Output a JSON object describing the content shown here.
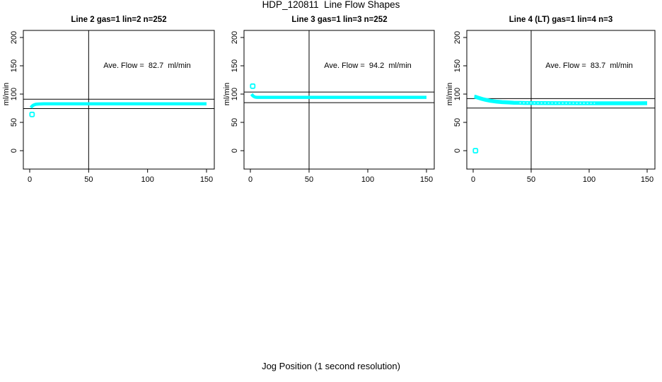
{
  "page": {
    "title": "HDP_120811  Line Flow Shapes",
    "xlabel": "Jog Position (1 second resolution)",
    "background_color": "#ffffff",
    "axis_color": "#000000",
    "marker_color": "#00ffff"
  },
  "chart_data": [
    {
      "type": "scatter",
      "title": "Line 2 gas=1 lin=2 n=252",
      "line_label": "Line 2",
      "gas": 1,
      "lin": 2,
      "n": 252,
      "annotation": "Ave. Flow =  82.7  ml/min",
      "ave_flow_ml_min": 82.7,
      "ylabel": "ml/min",
      "x_ticks": [
        0,
        50,
        100,
        150
      ],
      "y_ticks": [
        0,
        50,
        100,
        150,
        200
      ],
      "xlim": [
        0,
        150
      ],
      "ylim": [
        0,
        200
      ],
      "grid": false,
      "ref_line_v": 50,
      "ref_lines_h": [
        91.0,
        74.4
      ],
      "marker_color": "#00ffff",
      "series": [
        {
          "name": "flow",
          "points": [
            [
              1,
              76.0
            ],
            [
              2,
              78.6
            ],
            [
              3,
              80.3
            ],
            [
              4,
              81.3
            ],
            [
              5,
              81.9
            ],
            [
              6,
              82.2
            ],
            [
              8,
              82.5
            ],
            [
              10,
              82.6
            ],
            [
              12,
              82.7
            ],
            [
              15,
              82.7
            ],
            [
              20,
              82.8
            ],
            [
              30,
              82.8
            ],
            [
              40,
              82.8
            ],
            [
              50,
              82.8
            ],
            [
              60,
              82.8
            ],
            [
              75,
              82.8
            ],
            [
              90,
              82.8
            ],
            [
              100,
              82.8
            ],
            [
              110,
              82.8
            ],
            [
              125,
              82.8
            ],
            [
              140,
              82.8
            ],
            [
              150,
              82.8
            ]
          ]
        }
      ],
      "outliers": [
        [
          2,
          64
        ]
      ]
    },
    {
      "type": "scatter",
      "title": "Line 3 gas=1 lin=3 n=252",
      "line_label": "Line 3",
      "gas": 1,
      "lin": 3,
      "n": 252,
      "annotation": "Ave. Flow =  94.2  ml/min",
      "ave_flow_ml_min": 94.2,
      "ylabel": "ml/min",
      "x_ticks": [
        0,
        50,
        100,
        150
      ],
      "y_ticks": [
        0,
        50,
        100,
        150,
        200
      ],
      "xlim": [
        0,
        150
      ],
      "ylim": [
        0,
        200
      ],
      "grid": false,
      "ref_line_v": 50,
      "ref_lines_h": [
        103.6,
        84.8
      ],
      "marker_color": "#00ffff",
      "series": [
        {
          "name": "flow",
          "points": [
            [
              1,
              100.0
            ],
            [
              2,
              97.3
            ],
            [
              3,
              95.6
            ],
            [
              4,
              94.8
            ],
            [
              5,
              94.4
            ],
            [
              6,
              94.3
            ],
            [
              8,
              94.2
            ],
            [
              10,
              94.2
            ],
            [
              12,
              94.2
            ],
            [
              15,
              94.2
            ],
            [
              20,
              94.2
            ],
            [
              30,
              94.2
            ],
            [
              40,
              94.2
            ],
            [
              50,
              94.2
            ],
            [
              60,
              94.2
            ],
            [
              75,
              94.2
            ],
            [
              90,
              94.2
            ],
            [
              100,
              94.2
            ],
            [
              110,
              94.2
            ],
            [
              125,
              94.2
            ],
            [
              140,
              94.3
            ],
            [
              150,
              94.3
            ]
          ]
        }
      ],
      "outliers": [
        [
          2,
          114
        ]
      ]
    },
    {
      "type": "scatter",
      "title": "Line 4 (LT) gas=1 lin=4 n=3",
      "line_label": "Line 4 (LT)",
      "gas": 1,
      "lin": 4,
      "n": 3,
      "annotation": "Ave. Flow =  83.7  ml/min",
      "ave_flow_ml_min": 83.7,
      "ylabel": "ml/min",
      "x_ticks": [
        0,
        50,
        100,
        150
      ],
      "y_ticks": [
        0,
        50,
        100,
        150,
        200
      ],
      "xlim": [
        0,
        150
      ],
      "ylim": [
        0,
        200
      ],
      "grid": false,
      "ref_line_v": 50,
      "ref_lines_h": [
        92.1,
        75.3
      ],
      "marker_color": "#00ffff",
      "series": [
        {
          "name": "flow",
          "points": [
            [
              1,
              95.5
            ],
            [
              2,
              95.2
            ],
            [
              3,
              94.5
            ],
            [
              4,
              93.8
            ],
            [
              5,
              93.1
            ],
            [
              6,
              92.5
            ],
            [
              8,
              91.3
            ],
            [
              10,
              90.2
            ],
            [
              12,
              89.3
            ],
            [
              15,
              88.1
            ],
            [
              18,
              87.2
            ],
            [
              20,
              86.7
            ],
            [
              25,
              85.8
            ],
            [
              30,
              85.2
            ],
            [
              35,
              84.8
            ],
            [
              40,
              84.5
            ],
            [
              45,
              84.3
            ],
            [
              50,
              84.2
            ],
            [
              60,
              84.0
            ],
            [
              70,
              83.9
            ],
            [
              80,
              83.9
            ],
            [
              90,
              83.8
            ],
            [
              100,
              83.8
            ],
            [
              110,
              83.8
            ],
            [
              125,
              83.8
            ],
            [
              140,
              83.8
            ],
            [
              150,
              83.9
            ]
          ]
        }
      ],
      "outliers": [
        [
          2,
          0
        ]
      ]
    }
  ]
}
